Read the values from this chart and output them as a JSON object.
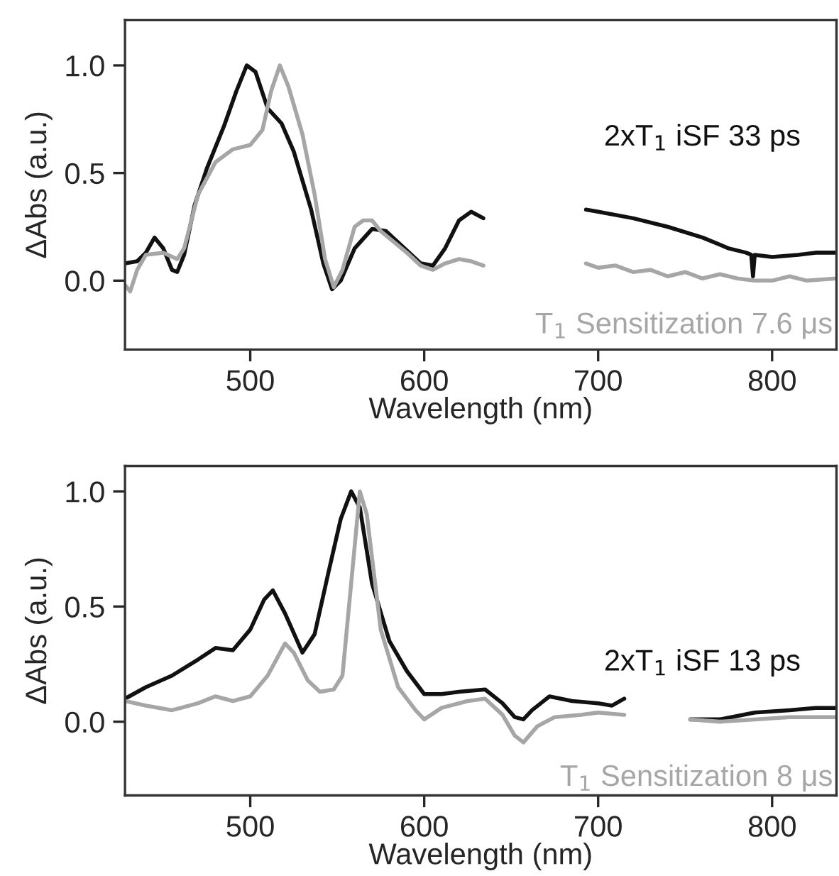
{
  "chart_data": [
    {
      "type": "line",
      "xlabel": "Wavelength (nm)",
      "ylabel": "ΔAbs (a.u.)",
      "xlim": [
        428,
        837
      ],
      "ylim": [
        -0.32,
        1.21
      ],
      "xticks": [
        500,
        600,
        700,
        800
      ],
      "yticks": [
        {
          "value": 0,
          "label": "0.0"
        },
        {
          "value": 0.5,
          "label": "0.5"
        },
        {
          "value": 1,
          "label": "1.0"
        }
      ],
      "grid": false,
      "legend": false,
      "series": [
        {
          "name": "2xT$_{1}$ iSF 33 ps",
          "color": "#111111",
          "x": [
            428,
            435,
            440,
            445,
            450,
            455,
            458,
            462,
            468,
            475,
            485,
            492,
            498,
            503,
            510,
            518,
            525,
            535,
            542,
            547,
            552,
            560,
            570,
            578,
            590,
            598,
            605,
            612,
            620,
            627,
            634,
            660,
            693,
            700,
            720,
            740,
            760,
            775,
            785,
            788,
            789,
            790,
            800,
            815,
            825,
            837
          ],
          "values": [
            0.08,
            0.09,
            0.13,
            0.2,
            0.15,
            0.05,
            0.04,
            0.12,
            0.35,
            0.52,
            0.72,
            0.88,
            1.0,
            0.97,
            0.8,
            0.73,
            0.6,
            0.33,
            0.08,
            -0.04,
            0.0,
            0.15,
            0.24,
            0.23,
            0.14,
            0.08,
            0.07,
            0.15,
            0.28,
            0.32,
            0.29,
            null,
            0.33,
            0.32,
            0.29,
            0.25,
            0.2,
            0.15,
            0.13,
            0.12,
            0.02,
            0.12,
            0.11,
            0.12,
            0.13,
            0.13
          ]
        },
        {
          "name": "T$_{1}$ Sensitization 7.6 μs",
          "color": "#a6a6a6",
          "x": [
            428,
            431,
            435,
            440,
            450,
            458,
            462,
            470,
            480,
            490,
            500,
            507,
            512,
            517,
            522,
            530,
            537,
            543,
            548,
            553,
            560,
            565,
            570,
            575,
            590,
            598,
            605,
            612,
            620,
            627,
            634,
            660,
            693,
            700,
            710,
            720,
            730,
            740,
            750,
            760,
            770,
            780,
            790,
            800,
            810,
            820,
            837
          ],
          "values": [
            -0.02,
            -0.05,
            0.05,
            0.12,
            0.13,
            0.1,
            0.15,
            0.4,
            0.55,
            0.61,
            0.63,
            0.7,
            0.88,
            1.0,
            0.9,
            0.68,
            0.4,
            0.1,
            -0.03,
            0.05,
            0.25,
            0.28,
            0.28,
            0.23,
            0.13,
            0.07,
            0.05,
            0.08,
            0.1,
            0.09,
            0.07,
            null,
            0.08,
            0.06,
            0.07,
            0.04,
            0.05,
            0.02,
            0.04,
            0.01,
            0.03,
            0.01,
            0.0,
            0.0,
            0.02,
            0.0,
            0.01
          ]
        }
      ]
    },
    {
      "type": "line",
      "xlabel": "Wavelength (nm)",
      "ylabel": "ΔAbs (a.u.)",
      "xlim": [
        428,
        837
      ],
      "ylim": [
        -0.32,
        1.11
      ],
      "xticks": [
        500,
        600,
        700,
        800
      ],
      "yticks": [
        {
          "value": 0,
          "label": "0.0"
        },
        {
          "value": 0.5,
          "label": "0.5"
        },
        {
          "value": 1,
          "label": "1.0"
        }
      ],
      "grid": false,
      "legend": false,
      "series": [
        {
          "name": "2xT$_{1}$ iSF 13 ps",
          "color": "#111111",
          "x": [
            428,
            440,
            455,
            470,
            480,
            490,
            500,
            508,
            513,
            520,
            530,
            537,
            545,
            552,
            558,
            563,
            570,
            580,
            590,
            600,
            610,
            620,
            635,
            645,
            652,
            657,
            662,
            672,
            685,
            700,
            708,
            715,
            735,
            753,
            770,
            790,
            810,
            825,
            837
          ],
          "values": [
            0.1,
            0.15,
            0.2,
            0.27,
            0.32,
            0.31,
            0.4,
            0.53,
            0.57,
            0.47,
            0.3,
            0.38,
            0.65,
            0.88,
            1.0,
            0.93,
            0.6,
            0.35,
            0.22,
            0.12,
            0.12,
            0.13,
            0.14,
            0.08,
            0.02,
            0.01,
            0.05,
            0.11,
            0.09,
            0.08,
            0.07,
            0.1,
            null,
            0.01,
            0.01,
            0.04,
            0.05,
            0.06,
            0.06
          ]
        },
        {
          "name": "T$_{1}$ Sensitization 8 μs",
          "color": "#a6a6a6",
          "x": [
            428,
            440,
            455,
            470,
            480,
            490,
            500,
            510,
            520,
            525,
            533,
            540,
            548,
            553,
            558,
            563,
            567,
            575,
            585,
            595,
            600,
            610,
            625,
            635,
            645,
            652,
            657,
            665,
            675,
            690,
            700,
            715,
            735,
            753,
            770,
            790,
            810,
            837
          ],
          "values": [
            0.09,
            0.07,
            0.05,
            0.08,
            0.11,
            0.09,
            0.11,
            0.2,
            0.34,
            0.3,
            0.18,
            0.13,
            0.14,
            0.2,
            0.6,
            1.0,
            0.9,
            0.4,
            0.15,
            0.05,
            0.01,
            0.06,
            0.09,
            0.1,
            0.03,
            -0.06,
            -0.09,
            -0.02,
            0.02,
            0.03,
            0.04,
            0.03,
            null,
            0.01,
            0.0,
            0.01,
            0.02,
            0.02
          ]
        }
      ]
    }
  ]
}
